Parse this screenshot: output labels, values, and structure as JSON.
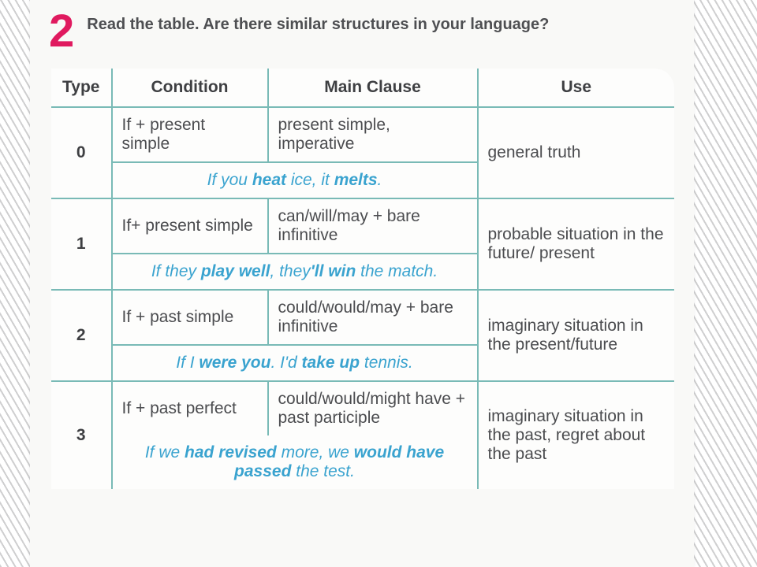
{
  "header": {
    "number": "2",
    "instruction": "Read the table. Are there similar structures in your language?"
  },
  "colors": {
    "accent_pink": "#e01a5f",
    "border_teal": "#79bab6",
    "example_blue": "#3aa3cf",
    "text_dark": "#4b4c4f",
    "bg_paper": "#f9f9f7"
  },
  "table": {
    "headers": {
      "type": "Type",
      "condition": "Condition",
      "main": "Main Clause",
      "use": "Use"
    },
    "rows": [
      {
        "type": "0",
        "condition": "If + present simple",
        "main": "present simple, imperative",
        "use": "general truth",
        "example_parts": [
          "If you ",
          "heat",
          " ice, it ",
          "melts",
          "."
        ]
      },
      {
        "type": "1",
        "condition": "If+ present simple",
        "main": "can/will/may + bare infinitive",
        "use": "probable situation in the future/ present",
        "example_parts": [
          "If they ",
          "play well",
          ", they",
          "'ll win",
          " the match."
        ]
      },
      {
        "type": "2",
        "condition": "If + past simple",
        "main": "could/would/may + bare infinitive",
        "use": "imaginary situation in the present/future",
        "example_parts": [
          "If I ",
          "were you",
          ". I'd ",
          "take up",
          " tennis."
        ]
      },
      {
        "type": "3",
        "condition": "If + past perfect",
        "main": "could/would/might have + past participle",
        "use": "imaginary situation in the past, regret about the past",
        "example_parts": [
          "If we ",
          "had revised",
          " more, we ",
          "would have passed",
          " the test."
        ]
      }
    ]
  }
}
